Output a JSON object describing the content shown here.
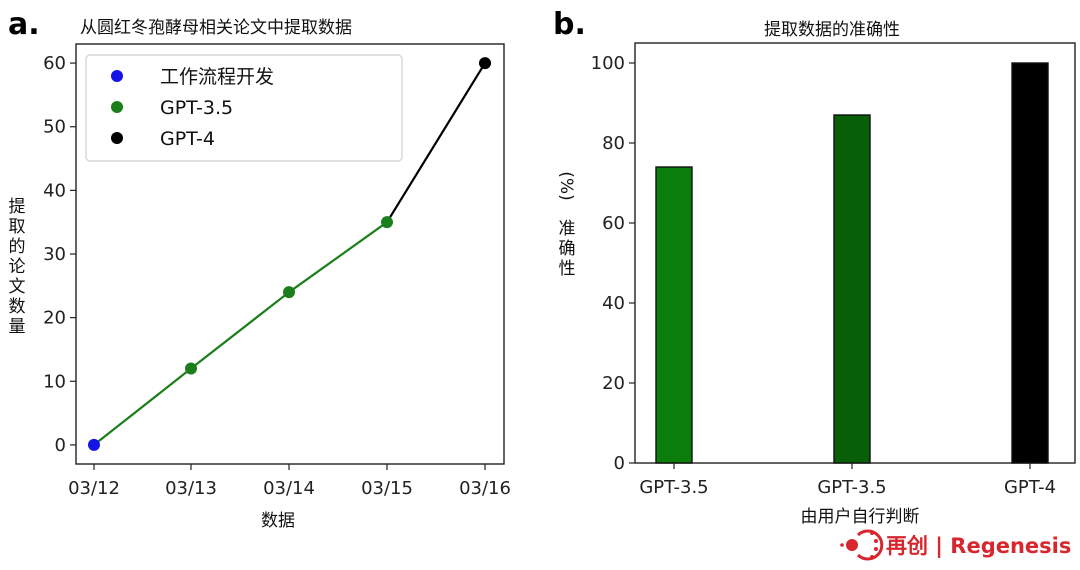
{
  "chart_data": [
    {
      "panel": "a.",
      "type": "line",
      "title": "从圆红冬孢酵母相关论文中提取数据",
      "xlabel": "数据",
      "ylabel": "提取的论文数量",
      "categories": [
        "03/12",
        "03/13",
        "03/14",
        "03/15",
        "03/16"
      ],
      "yticks": [
        0,
        10,
        20,
        30,
        40,
        50,
        60
      ],
      "ylim": [
        -3,
        63
      ],
      "grid": false,
      "legend_position": "top-left",
      "series": [
        {
          "name": "工作流程开发",
          "color": "#1414e6",
          "points": [
            {
              "x": "03/12",
              "y": 0
            }
          ]
        },
        {
          "name": "GPT-3.5",
          "color": "#1a7f1a",
          "points": [
            {
              "x": "03/13",
              "y": 12
            },
            {
              "x": "03/14",
              "y": 24
            },
            {
              "x": "03/15",
              "y": 35
            }
          ]
        },
        {
          "name": "GPT-4",
          "color": "#000000",
          "points": [
            {
              "x": "03/16",
              "y": 60
            }
          ]
        }
      ],
      "lines": [
        {
          "color": "#1a7f1a",
          "from": 0,
          "to": 3
        },
        {
          "color": "#000000",
          "from": 3,
          "to": 4
        }
      ],
      "values": [
        0,
        12,
        24,
        35,
        60
      ]
    },
    {
      "panel": "b.",
      "type": "bar",
      "title": "提取数据的准确性",
      "xlabel": "由用户自行判断",
      "ylabel": "准确性",
      "ylabel_unit": "(%)",
      "categories": [
        "GPT-3.5",
        "GPT-3.5",
        "GPT-4"
      ],
      "values": [
        74,
        87,
        100
      ],
      "bar_colors": [
        "#0b7d0b",
        "#075f07",
        "#000000"
      ],
      "yticks": [
        0,
        20,
        40,
        60,
        80,
        100
      ],
      "ylim": [
        0,
        105
      ],
      "grid": false
    }
  ],
  "brand": {
    "text": "再创 | Regenesis",
    "color": "#d8262e"
  }
}
